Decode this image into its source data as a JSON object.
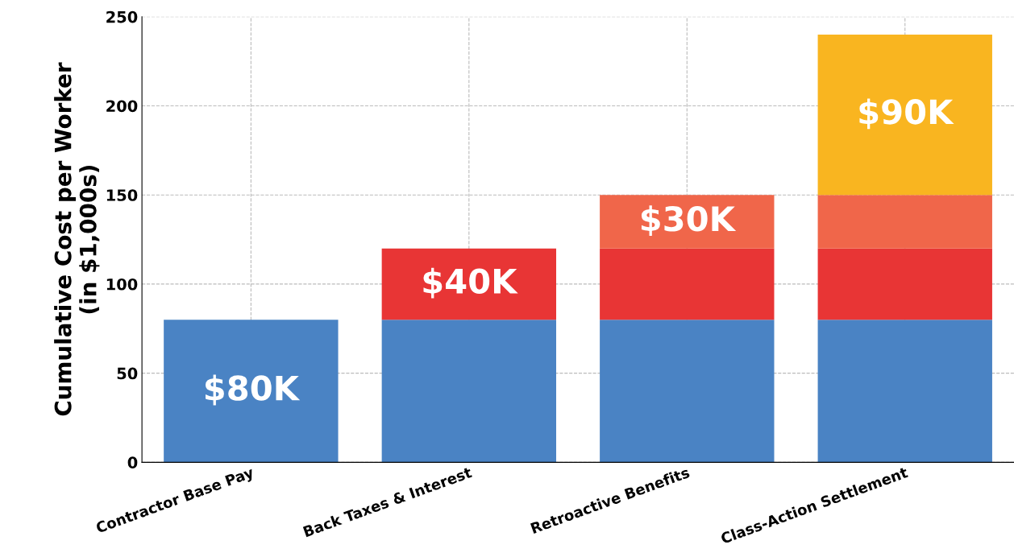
{
  "chart_data": {
    "type": "bar",
    "stacked": true,
    "ylabel": "Cumulative Cost per Worker\n(in $1,000s)",
    "categories": [
      "Contractor Base Pay",
      "Back Taxes & Interest",
      "Retroactive Benefits",
      "Class-Action Settlement"
    ],
    "series": [
      {
        "color": "#4a83c4",
        "values": [
          80,
          80,
          80,
          80
        ],
        "value_labels": [
          "$80K",
          null,
          null,
          null
        ]
      },
      {
        "color": "#e83535",
        "values": [
          null,
          40,
          40,
          40
        ],
        "value_labels": [
          null,
          "$40K",
          null,
          null
        ]
      },
      {
        "color": "#f0664a",
        "values": [
          null,
          null,
          30,
          30
        ],
        "value_labels": [
          null,
          null,
          "$30K",
          null
        ]
      },
      {
        "color": "#f9b520",
        "values": [
          null,
          null,
          null,
          90
        ],
        "value_labels": [
          null,
          null,
          null,
          "$90K"
        ]
      }
    ],
    "ylim": [
      0,
      250
    ],
    "yticks": [
      0,
      50,
      100,
      150,
      200,
      250
    ],
    "grid": true
  }
}
